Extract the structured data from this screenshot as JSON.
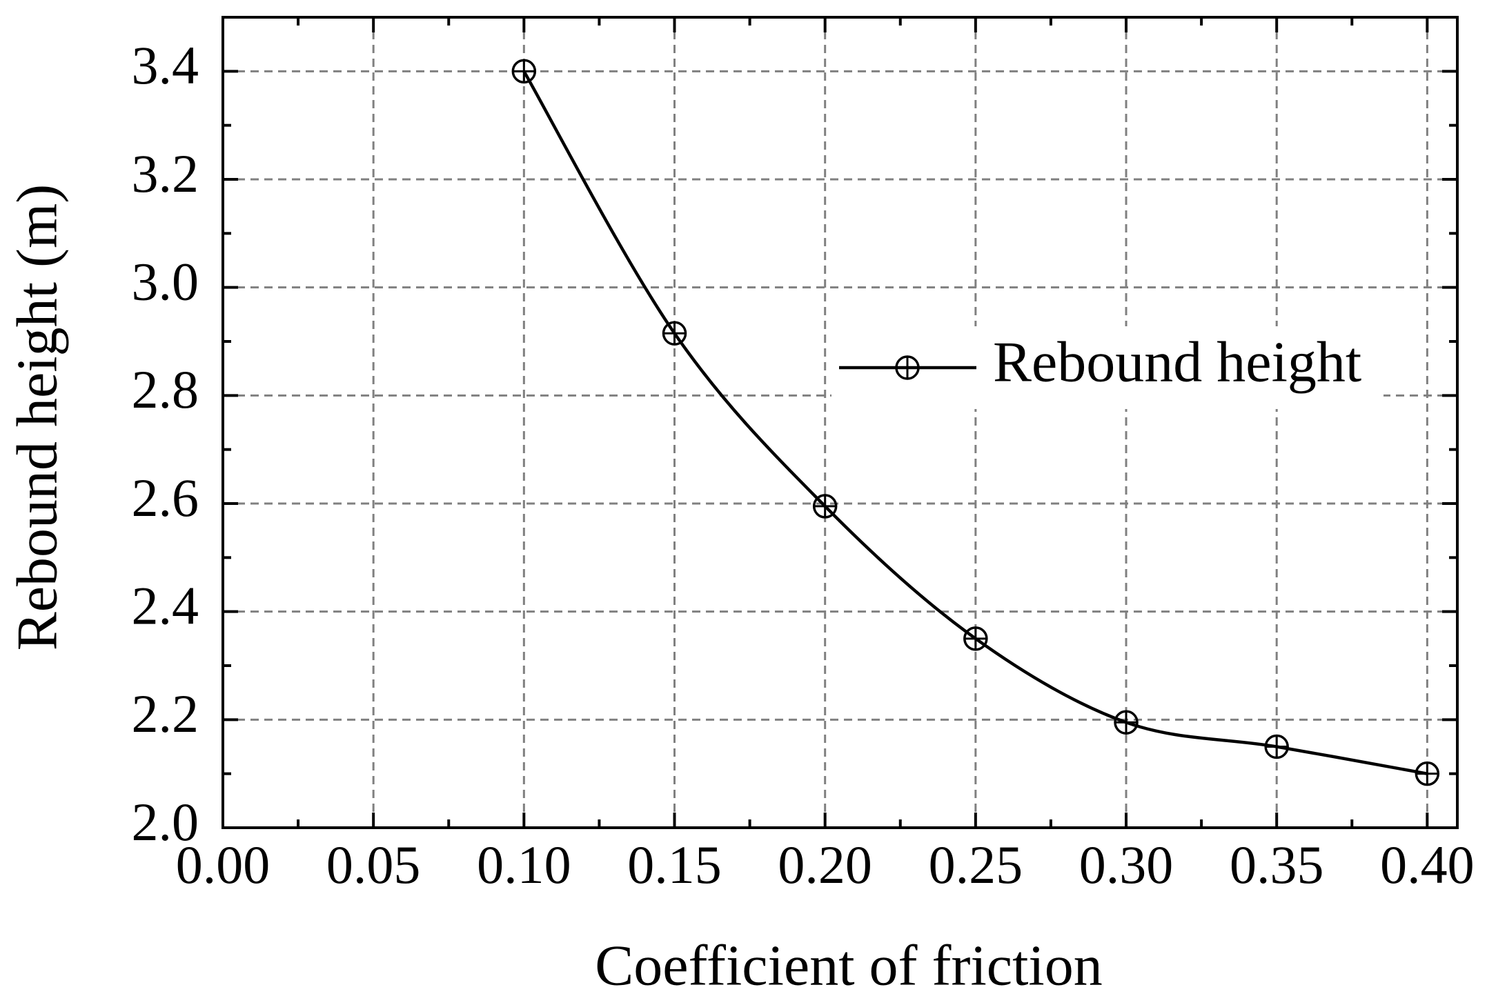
{
  "chart_data": {
    "type": "line",
    "x_label": "Coefficient of friction",
    "y_label": "Rebound height (m)",
    "x": [
      0.1,
      0.15,
      0.2,
      0.25,
      0.3,
      0.35,
      0.4
    ],
    "series": [
      {
        "name": "Rebound height",
        "color": "#000000",
        "values": [
          3.4,
          2.915,
          2.595,
          2.35,
          2.195,
          2.15,
          2.1
        ]
      }
    ],
    "xlim": [
      0,
      0.41
    ],
    "ylim": [
      2.0,
      3.5
    ],
    "xticks": [
      {
        "value": 0,
        "label": "0.00"
      },
      {
        "value": 0.05,
        "label": "0.05"
      },
      {
        "value": 0.1,
        "label": "0.10"
      },
      {
        "value": 0.15,
        "label": "0.15"
      },
      {
        "value": 0.2,
        "label": "0.20"
      },
      {
        "value": 0.25,
        "label": "0.25"
      },
      {
        "value": 0.3,
        "label": "0.30"
      },
      {
        "value": 0.35,
        "label": "0.35"
      },
      {
        "value": 0.4,
        "label": "0.40"
      }
    ],
    "yticks": [
      {
        "value": 2.0,
        "label": "2.0"
      },
      2.2,
      2.4,
      2.6,
      2.8,
      {
        "value": 3.0,
        "label": "3.0"
      },
      3.2,
      3.4
    ],
    "grid": true,
    "legend": "center right"
  }
}
